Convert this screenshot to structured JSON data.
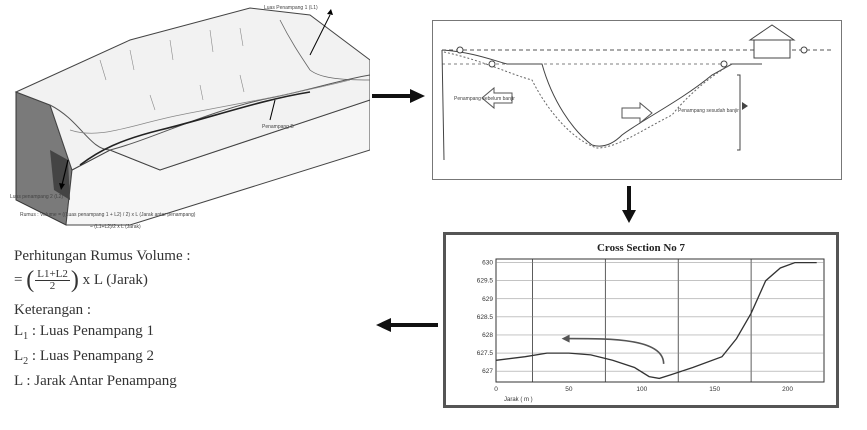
{
  "block_diagram": {
    "label_top": "Luas Penampang 1 (L1)",
    "label_mid": "Penampang B",
    "label_bottom": "Luas penampang 2 (L2)",
    "formula_line1": "Rumus : Volume = ((Luas penampang 1 + L2) / 2) x L (Jarak antar penampang)",
    "formula_line2": "= (L1+L2)/2 x L (Jarak)"
  },
  "river_diagram": {
    "label_left": "Penampang sebelum banjir",
    "label_right": "Penampang sesudah banjir"
  },
  "volume_text": {
    "title": "Perhitungan Rumus Volume :",
    "prefix": "=",
    "numerator": "L1+L2",
    "denominator": "2",
    "suffix": "x L (Jarak)",
    "keterangan": "Keterangan :",
    "items": [
      {
        "sym": "L",
        "sub": "1",
        "desc": ": Luas Penampang 1"
      },
      {
        "sym": "L",
        "sub": "2",
        "desc": ": Luas Penampang 2"
      },
      {
        "sym": "L",
        "sub": "",
        "desc": " : Jarak Antar Penampang"
      }
    ]
  },
  "chart_data": {
    "type": "line",
    "title": "Cross Section No 7",
    "xlabel": "Jarak ( m )",
    "ylabel": "",
    "xlim": [
      0,
      225
    ],
    "ylim": [
      626.7,
      630.1
    ],
    "x_ticks": [
      0,
      50,
      100,
      150,
      200
    ],
    "y_ticks": [
      627,
      627.5,
      628,
      628.5,
      629,
      629.5,
      630
    ],
    "y_tick_labels": [
      "627",
      "627.5",
      "628",
      "628.5",
      "629",
      "629.5",
      "630"
    ],
    "grid": true,
    "series": [
      {
        "points": [
          [
            0,
            627.3
          ],
          [
            20,
            627.4
          ],
          [
            35,
            627.5
          ],
          [
            50,
            627.5
          ],
          [
            65,
            627.45
          ],
          [
            80,
            627.3
          ],
          [
            95,
            627.1
          ],
          [
            105,
            626.85
          ],
          [
            112,
            626.8
          ],
          [
            120,
            626.9
          ],
          [
            135,
            627.1
          ],
          [
            155,
            627.4
          ],
          [
            165,
            627.9
          ],
          [
            175,
            628.6
          ],
          [
            185,
            629.5
          ],
          [
            195,
            629.85
          ],
          [
            205,
            630.0
          ],
          [
            220,
            630.0
          ]
        ]
      }
    ],
    "annotation_arrow": {
      "from": [
        115,
        627.2
      ],
      "to": [
        45,
        627.9
      ]
    }
  },
  "colors": {
    "line": "#333333",
    "grid": "#333333",
    "frame": "#555555",
    "arrow": "#111111"
  }
}
